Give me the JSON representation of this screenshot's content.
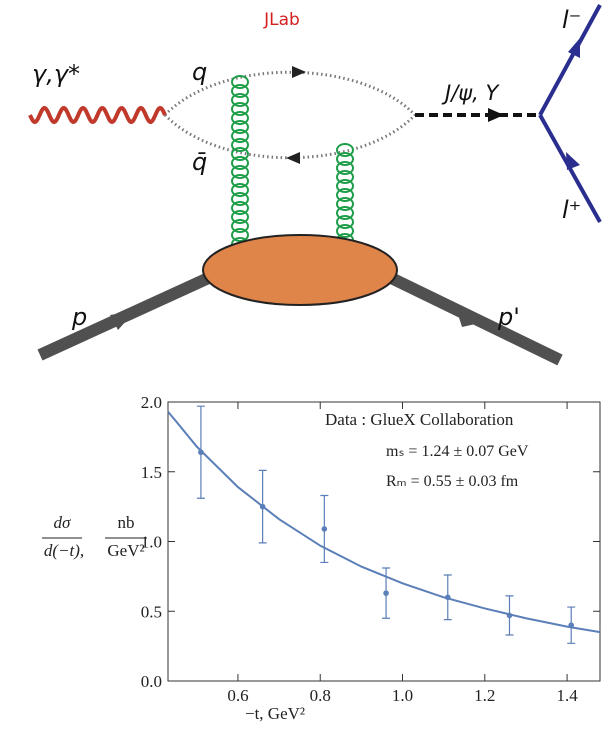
{
  "diagram": {
    "lab": "JLab",
    "photon": "γ,γ*",
    "quark": "q",
    "antiquark": "q̄",
    "meson": "J/ψ, Υ",
    "lepton_minus": "l⁻",
    "lepton_plus": "l⁺",
    "proton_in": "p",
    "proton_out": "p'"
  },
  "chart_data": {
    "type": "scatter",
    "xlabel": "−t,  GeV²",
    "ylabel": {
      "numerator": "dσ",
      "denominator": "d(−t),",
      "unit_numerator": "nb",
      "unit_denominator": "GeV²"
    },
    "annotations": [
      "Data :  GlueX Collaboration",
      "mₛ = 1.24 ± 0.07 GeV",
      "Rₘ = 0.55 ± 0.03 fm"
    ],
    "x": [
      0.51,
      0.66,
      0.81,
      0.96,
      1.11,
      1.26,
      1.41
    ],
    "values": [
      1.64,
      1.25,
      1.09,
      0.63,
      0.6,
      0.47,
      0.4
    ],
    "errors": [
      0.33,
      0.26,
      0.24,
      0.18,
      0.16,
      0.14,
      0.13
    ],
    "color": "#5b7fb8",
    "fit": {
      "x": [
        0.43,
        0.45,
        0.5,
        0.6,
        0.7,
        0.8,
        0.9,
        1.0,
        1.1,
        1.2,
        1.3,
        1.4,
        1.48
      ],
      "values": [
        1.93,
        1.86,
        1.68,
        1.39,
        1.16,
        0.97,
        0.82,
        0.7,
        0.6,
        0.52,
        0.45,
        0.39,
        0.35
      ],
      "color": "#5b7fb8"
    },
    "xlim": [
      0.43,
      1.48
    ],
    "ylim": [
      0,
      2
    ],
    "xticks": [
      0.6,
      0.8,
      {
        "value": 1,
        "label": "1.0"
      },
      1.2,
      1.4
    ],
    "yticks": [
      {
        "value": 0,
        "label": "0.0"
      },
      0.5,
      {
        "value": 1,
        "label": "1.0"
      },
      1.5,
      {
        "value": 2,
        "label": "2.0"
      }
    ]
  }
}
